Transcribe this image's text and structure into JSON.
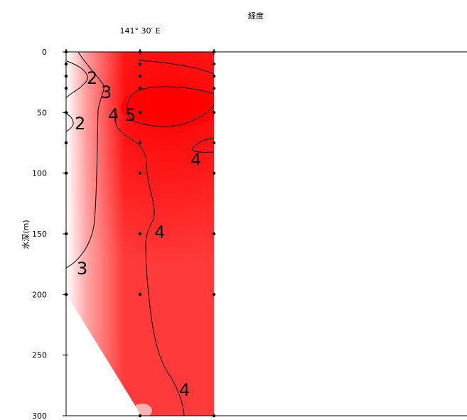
{
  "chart_data": {
    "type": "heatmap",
    "title": "",
    "xlabel": "経度",
    "x_tick_labels": [
      "141° 30′ E"
    ],
    "ylabel": "水深(m)",
    "ylim": [
      0,
      300
    ],
    "y_inverted": true,
    "y_ticks": [
      0,
      50,
      100,
      150,
      200,
      250,
      300
    ],
    "grid": false,
    "colormap": "white-to-red",
    "colors": {
      "low": "#ffffff",
      "high": "#ff0000",
      "contour": "#000000",
      "point": "#000000"
    },
    "station_depths": [
      [
        0,
        10,
        20,
        30,
        50,
        75,
        100,
        150,
        200
      ],
      [
        0,
        10,
        20,
        30,
        50,
        75,
        100,
        150,
        200,
        300
      ],
      [
        0,
        10,
        20,
        30,
        50,
        75,
        100,
        150,
        200,
        300
      ]
    ],
    "contours": [
      {
        "level": 2,
        "label": "2"
      },
      {
        "level": 2,
        "label": "2"
      },
      {
        "level": 3,
        "label": "3"
      },
      {
        "level": 3,
        "label": "3"
      },
      {
        "level": 4,
        "label": "4"
      },
      {
        "level": 4,
        "label": "4"
      },
      {
        "level": 4,
        "label": "4"
      },
      {
        "level": 4,
        "label": "4"
      },
      {
        "level": 5,
        "label": "5"
      }
    ]
  }
}
